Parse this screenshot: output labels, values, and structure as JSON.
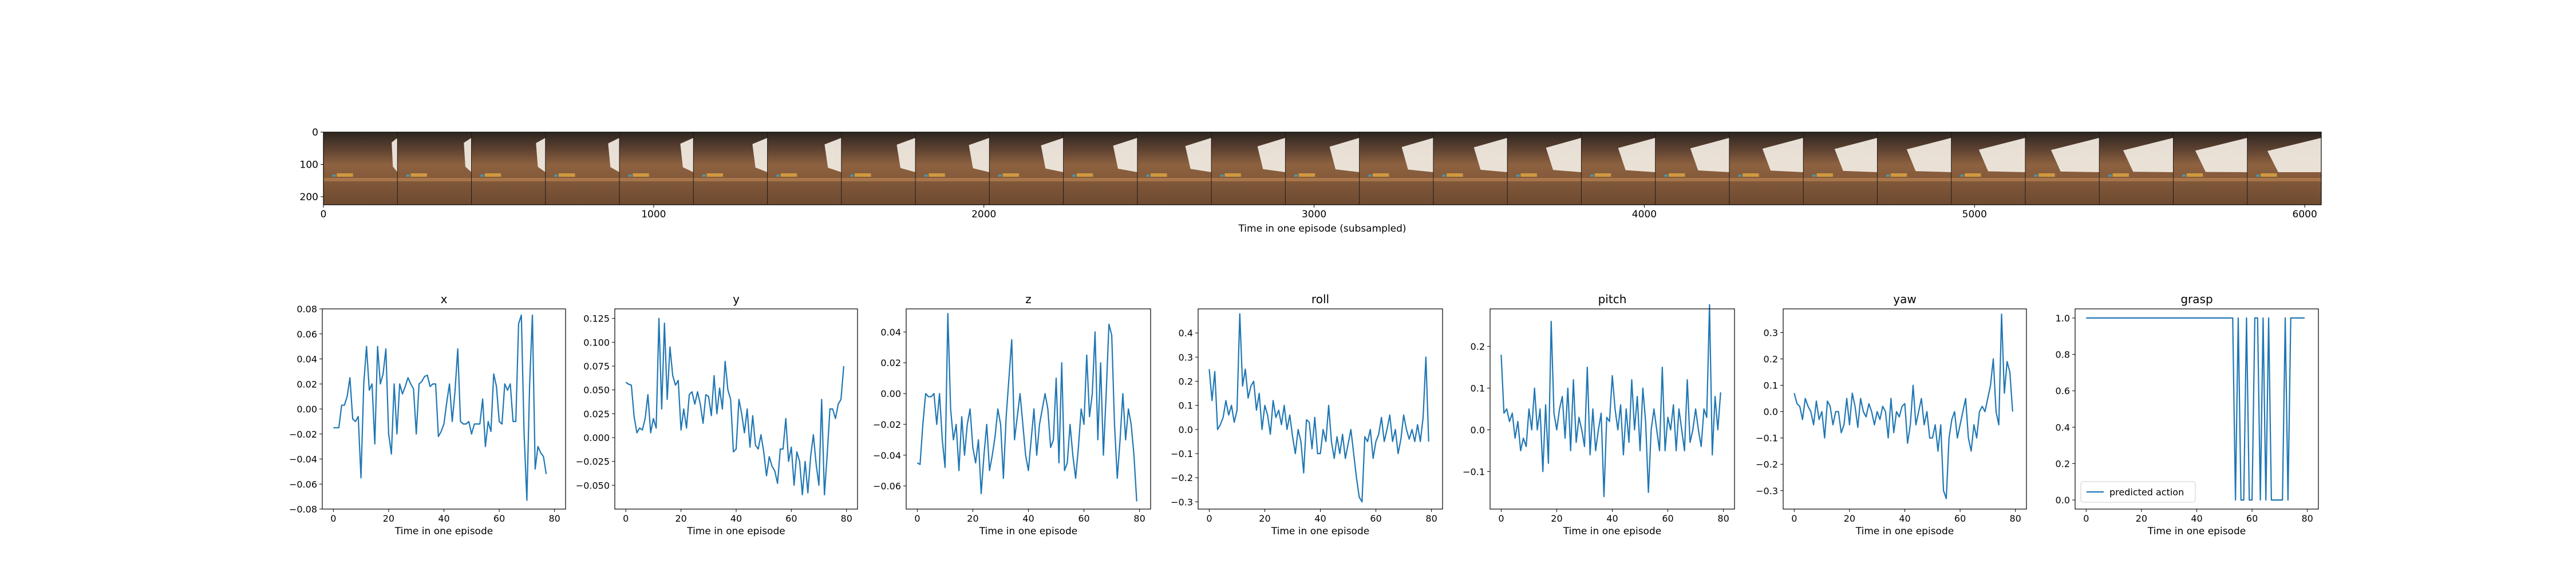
{
  "strip": {
    "xlabel": "Time in one episode (subsampled)",
    "x_ticks": [
      "0",
      "1000",
      "2000",
      "3000",
      "4000",
      "5000",
      "6000"
    ],
    "y_ticks": [
      "0",
      "100",
      "200"
    ],
    "xlim": [
      0,
      6050
    ],
    "ylim": [
      225,
      0
    ],
    "frames": 27
  },
  "colors": {
    "line": "#1f77b4",
    "axis": "#000000",
    "wood": "#8b5a36",
    "arm": "#efe8de"
  },
  "chart_data": [
    {
      "type": "line",
      "title": "x",
      "xlabel": "Time in one episode",
      "xlim": [
        -4,
        84
      ],
      "ylim": [
        -0.08,
        0.08
      ],
      "x_ticks": [
        0,
        20,
        40,
        60,
        80
      ],
      "y_ticks": [
        -0.08,
        -0.06,
        -0.04,
        -0.02,
        0.0,
        0.02,
        0.04,
        0.06,
        0.08
      ],
      "y_tick_labels": [
        "−0.08",
        "−0.06",
        "−0.04",
        "−0.02",
        "0.00",
        "0.02",
        "0.04",
        "0.06",
        "0.08"
      ],
      "values": [
        -0.015,
        -0.015,
        -0.015,
        0.003,
        0.003,
        0.01,
        0.025,
        -0.008,
        -0.01,
        -0.006,
        -0.055,
        0.02,
        0.05,
        0.015,
        0.02,
        -0.028,
        0.05,
        0.02,
        0.028,
        0.048,
        -0.02,
        -0.036,
        0.02,
        -0.02,
        0.02,
        0.012,
        0.018,
        0.025,
        0.02,
        0.016,
        -0.02,
        0.02,
        0.022,
        0.026,
        0.027,
        0.018,
        0.02,
        0.02,
        -0.022,
        -0.018,
        -0.012,
        0.005,
        0.02,
        -0.01,
        0.014,
        0.048,
        -0.01,
        -0.012,
        -0.012,
        -0.01,
        -0.02,
        -0.012,
        -0.012,
        -0.012,
        0.008,
        -0.03,
        -0.01,
        -0.018,
        0.028,
        0.018,
        -0.01,
        -0.012,
        0.02,
        0.015,
        0.02,
        -0.01,
        -0.01,
        0.068,
        0.075,
        -0.02,
        -0.073,
        0.02,
        0.075,
        -0.048,
        -0.03,
        -0.035,
        -0.038,
        -0.052
      ]
    },
    {
      "type": "line",
      "title": "y",
      "xlabel": "Time in one episode",
      "xlim": [
        -4,
        84
      ],
      "ylim": [
        -0.075,
        0.135
      ],
      "x_ticks": [
        0,
        20,
        40,
        60,
        80
      ],
      "y_ticks": [
        -0.05,
        -0.025,
        0.0,
        0.025,
        0.05,
        0.075,
        0.1,
        0.125
      ],
      "y_tick_labels": [
        "−0.050",
        "−0.025",
        "0.000",
        "0.025",
        "0.050",
        "0.075",
        "0.100",
        "0.125"
      ],
      "values": [
        0.058,
        0.056,
        0.055,
        0.022,
        0.005,
        0.01,
        0.008,
        0.02,
        0.045,
        0.005,
        0.02,
        0.01,
        0.125,
        0.03,
        0.12,
        0.04,
        0.095,
        0.065,
        0.055,
        0.06,
        0.008,
        0.03,
        0.01,
        0.045,
        0.048,
        0.035,
        0.048,
        0.035,
        0.015,
        0.045,
        0.043,
        0.023,
        0.065,
        0.025,
        0.052,
        0.03,
        0.08,
        0.05,
        0.04,
        -0.015,
        -0.012,
        0.04,
        0.025,
        0.005,
        0.03,
        -0.01,
        0.023,
        -0.008,
        -0.012,
        0.003,
        -0.015,
        -0.04,
        -0.02,
        -0.03,
        -0.035,
        -0.048,
        -0.012,
        -0.012,
        0.02,
        -0.025,
        -0.01,
        -0.05,
        -0.015,
        -0.025,
        -0.06,
        -0.025,
        -0.058,
        -0.02,
        0.003,
        -0.028,
        -0.05,
        0.04,
        -0.06,
        -0.018,
        0.03,
        0.03,
        0.02,
        0.035,
        0.04,
        0.075
      ]
    },
    {
      "type": "line",
      "title": "z",
      "xlabel": "Time in one episode",
      "xlim": [
        -4,
        84
      ],
      "ylim": [
        -0.075,
        0.055
      ],
      "x_ticks": [
        0,
        20,
        40,
        60,
        80
      ],
      "y_ticks": [
        -0.06,
        -0.04,
        -0.02,
        0.0,
        0.02,
        0.04
      ],
      "y_tick_labels": [
        "−0.06",
        "−0.04",
        "−0.02",
        "0.00",
        "0.02",
        "0.04"
      ],
      "values": [
        -0.045,
        -0.046,
        -0.02,
        0.0,
        -0.002,
        -0.002,
        0.0,
        -0.02,
        0.0,
        -0.03,
        -0.048,
        0.052,
        -0.01,
        -0.03,
        -0.02,
        -0.05,
        -0.015,
        -0.04,
        -0.02,
        -0.01,
        -0.035,
        -0.045,
        -0.03,
        -0.065,
        -0.04,
        -0.02,
        -0.05,
        -0.04,
        -0.028,
        -0.01,
        -0.02,
        -0.055,
        -0.015,
        0.01,
        0.035,
        -0.03,
        -0.015,
        0.0,
        -0.02,
        -0.04,
        -0.05,
        -0.03,
        -0.01,
        -0.04,
        -0.02,
        -0.01,
        0.0,
        -0.01,
        -0.035,
        -0.03,
        0.01,
        -0.045,
        0.02,
        -0.05,
        -0.045,
        -0.02,
        -0.04,
        -0.055,
        -0.035,
        -0.01,
        -0.02,
        0.025,
        -0.015,
        0.0,
        0.04,
        -0.03,
        0.02,
        -0.04,
        0.0,
        0.045,
        0.038,
        -0.02,
        -0.055,
        -0.03,
        0.0,
        -0.03,
        -0.01,
        -0.02,
        -0.04,
        -0.07
      ]
    },
    {
      "type": "line",
      "title": "roll",
      "xlabel": "Time in one episode",
      "xlim": [
        -4,
        84
      ],
      "ylim": [
        -0.33,
        0.5
      ],
      "x_ticks": [
        0,
        20,
        40,
        60,
        80
      ],
      "y_ticks": [
        -0.3,
        -0.2,
        -0.1,
        0.0,
        0.1,
        0.2,
        0.3,
        0.4
      ],
      "y_tick_labels": [
        "−0.3",
        "−0.2",
        "−0.1",
        "0.0",
        "0.1",
        "0.2",
        "0.3",
        "0.4"
      ],
      "values": [
        0.25,
        0.12,
        0.24,
        0.0,
        0.02,
        0.05,
        0.12,
        0.06,
        0.1,
        0.03,
        0.08,
        0.48,
        0.18,
        0.25,
        0.13,
        0.18,
        0.2,
        0.08,
        0.15,
        0.0,
        0.1,
        0.06,
        -0.02,
        0.12,
        0.05,
        0.08,
        0.02,
        0.1,
        0.0,
        0.06,
        -0.03,
        -0.1,
        0.0,
        -0.05,
        -0.18,
        0.04,
        0.03,
        -0.08,
        0.05,
        -0.1,
        -0.1,
        0.0,
        -0.05,
        0.1,
        -0.05,
        -0.12,
        -0.03,
        -0.1,
        -0.02,
        -0.12,
        -0.06,
        0.0,
        -0.1,
        -0.2,
        -0.28,
        -0.3,
        -0.03,
        -0.05,
        0.0,
        -0.12,
        -0.05,
        -0.02,
        0.05,
        -0.05,
        0.0,
        0.06,
        -0.05,
        0.0,
        -0.1,
        -0.04,
        0.06,
        0.0,
        -0.04,
        0.0,
        -0.05,
        0.02,
        -0.05,
        0.05,
        0.3,
        -0.05
      ]
    },
    {
      "type": "line",
      "title": "pitch",
      "xlabel": "Time in one episode",
      "xlim": [
        -4,
        84
      ],
      "ylim": [
        -0.19,
        0.29
      ],
      "x_ticks": [
        0,
        20,
        40,
        60,
        80
      ],
      "y_ticks": [
        -0.1,
        0.0,
        0.1,
        0.2
      ],
      "y_tick_labels": [
        "−0.1",
        "0.0",
        "0.1",
        "0.2"
      ],
      "values": [
        0.18,
        0.04,
        0.05,
        0.02,
        0.04,
        -0.02,
        0.02,
        -0.05,
        -0.02,
        -0.04,
        0.05,
        0.0,
        0.1,
        0.0,
        0.05,
        -0.1,
        0.06,
        -0.08,
        0.26,
        0.04,
        0.0,
        0.05,
        0.08,
        -0.02,
        0.1,
        -0.05,
        0.12,
        -0.03,
        0.03,
        0.0,
        -0.04,
        0.15,
        -0.06,
        0.05,
        -0.05,
        0.0,
        0.04,
        -0.16,
        0.03,
        0.02,
        0.13,
        0.05,
        0.0,
        0.06,
        -0.06,
        0.05,
        -0.03,
        0.12,
        0.0,
        0.08,
        -0.05,
        0.1,
        0.02,
        -0.15,
        0.0,
        0.05,
        0.0,
        -0.05,
        0.15,
        -0.05,
        0.03,
        0.0,
        0.06,
        -0.05,
        0.05,
        0.0,
        -0.05,
        0.12,
        -0.03,
        0.0,
        0.05,
        0.0,
        -0.04,
        0.05,
        0.03,
        0.3,
        -0.06,
        0.08,
        0.0,
        0.09
      ]
    },
    {
      "type": "line",
      "title": "yaw",
      "xlabel": "Time in one episode",
      "xlim": [
        -4,
        84
      ],
      "ylim": [
        -0.37,
        0.39
      ],
      "x_ticks": [
        0,
        20,
        40,
        60,
        80
      ],
      "y_ticks": [
        -0.3,
        -0.2,
        -0.1,
        0.0,
        0.1,
        0.2,
        0.3
      ],
      "y_tick_labels": [
        "−0.3",
        "−0.2",
        "−0.1",
        "0.0",
        "0.1",
        "0.2",
        "0.3"
      ],
      "values": [
        0.07,
        0.03,
        0.02,
        -0.03,
        0.05,
        0.02,
        0.0,
        -0.05,
        0.04,
        -0.03,
        0.0,
        -0.1,
        0.04,
        0.02,
        -0.05,
        0.0,
        0.0,
        -0.08,
        -0.05,
        0.05,
        -0.05,
        0.07,
        0.02,
        -0.06,
        0.05,
        0.0,
        -0.02,
        0.03,
        0.0,
        -0.05,
        0.0,
        -0.03,
        0.02,
        0.0,
        -0.1,
        0.05,
        -0.08,
        0.0,
        -0.02,
        0.02,
        0.03,
        -0.12,
        -0.05,
        0.1,
        -0.05,
        0.0,
        0.05,
        -0.05,
        0.0,
        -0.1,
        -0.1,
        -0.05,
        -0.15,
        -0.05,
        -0.3,
        -0.33,
        -0.1,
        -0.03,
        0.0,
        -0.1,
        -0.05,
        0.0,
        0.05,
        -0.1,
        -0.15,
        -0.05,
        -0.1,
        0.0,
        0.02,
        0.0,
        0.05,
        0.1,
        0.2,
        0.0,
        -0.05,
        0.37,
        0.07,
        0.19,
        0.15,
        0.0
      ]
    },
    {
      "type": "line",
      "title": "grasp",
      "xlabel": "Time in one episode",
      "xlim": [
        -4,
        84
      ],
      "ylim": [
        -0.05,
        1.05
      ],
      "x_ticks": [
        0,
        20,
        40,
        60,
        80
      ],
      "y_ticks": [
        0.0,
        0.2,
        0.4,
        0.6,
        0.8,
        1.0
      ],
      "y_tick_labels": [
        "0.0",
        "0.2",
        "0.4",
        "0.6",
        "0.8",
        "1.0"
      ],
      "legend": "predicted action",
      "legend_position": "lower-left",
      "values": [
        1,
        1,
        1,
        1,
        1,
        1,
        1,
        1,
        1,
        1,
        1,
        1,
        1,
        1,
        1,
        1,
        1,
        1,
        1,
        1,
        1,
        1,
        1,
        1,
        1,
        1,
        1,
        1,
        1,
        1,
        1,
        1,
        1,
        1,
        1,
        1,
        1,
        1,
        1,
        1,
        1,
        1,
        1,
        1,
        1,
        1,
        1,
        1,
        1,
        1,
        1,
        1,
        1,
        1,
        0,
        1,
        0,
        0,
        1,
        0,
        0,
        1,
        1,
        0,
        1,
        0,
        1,
        0,
        0,
        0,
        0,
        0,
        1,
        0,
        1,
        1,
        1,
        1,
        1,
        1
      ]
    }
  ]
}
